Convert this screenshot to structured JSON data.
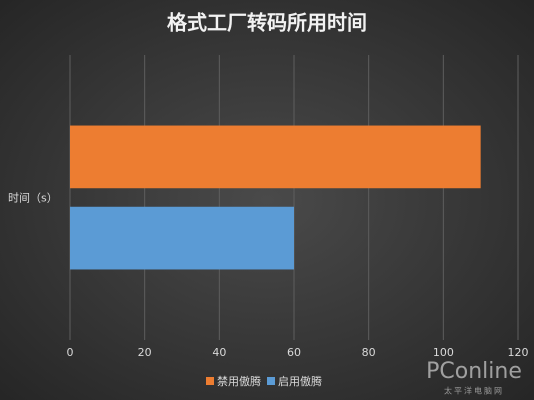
{
  "chart_data": {
    "type": "hbar",
    "title": "格式工厂转码所用时间",
    "categories": [
      "时间（s）"
    ],
    "series": [
      {
        "name": "禁用傲腾",
        "color": "#ed7d31",
        "values": [
          110
        ]
      },
      {
        "name": "启用傲腾",
        "color": "#5b9bd5",
        "values": [
          60
        ]
      }
    ],
    "xlim": [
      0,
      120
    ],
    "xticks": [
      0,
      20,
      40,
      60,
      80,
      100,
      120
    ],
    "grid": true,
    "legend": "bottom",
    "watermark": "PConline",
    "watermark_sub": "太平洋电脑网"
  }
}
